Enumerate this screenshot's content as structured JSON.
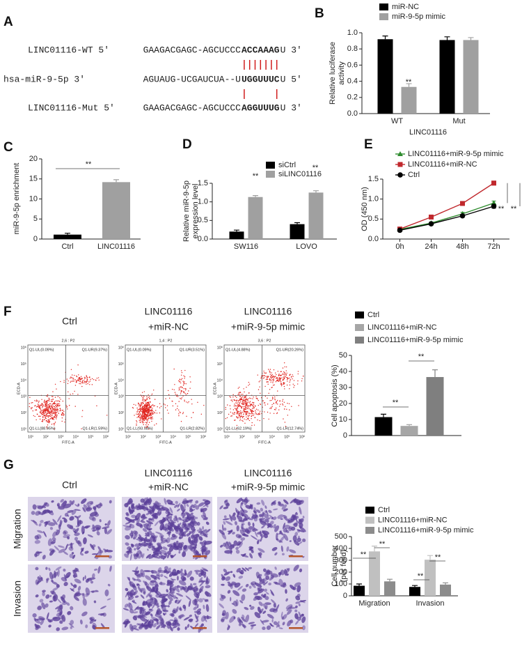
{
  "panel_labels": [
    "A",
    "B",
    "C",
    "D",
    "E",
    "F",
    "G"
  ],
  "sequences": [
    {
      "name": "LINC01116-WT 5'",
      "left": "GAAGACGAGC-AGCUCCC",
      "site": "ACCAAAG",
      "right": "U 3'"
    },
    {
      "name": "hsa-miR-9-5p 3'",
      "left": "AGUAUG-UCGAUCUA--U",
      "site": "UGGUUUC",
      "right": "U 5'"
    },
    {
      "name": "LINC01116-Mut 5'",
      "left": "GAAGACGAGC-AGCUCCC",
      "site": "AGGUUUG",
      "right": "U 3'"
    }
  ],
  "flow_cytometry": {
    "columns": [
      [
        "Ctrl"
      ],
      [
        "LINC01116",
        "+miR-NC"
      ],
      [
        "LINC01116",
        "+miR-9-5p mimic"
      ]
    ],
    "plots": [
      {
        "header": "2,6 : P2",
        "quadrants": [
          "Q1-UL(0.09%)",
          "Q1-UR(9.37%)",
          "Q1-LL(88.95%)",
          "Q1-LR(1.59%)"
        ]
      },
      {
        "header": "1,4 : P2",
        "quadrants": [
          "Q1-UL(0.09%)",
          "Q1-UR(3.51%)",
          "Q1-LL(93.58%)",
          "Q1-LR(2.82%)"
        ]
      },
      {
        "header": "3,6 : P2",
        "quadrants": [
          "Q1-UL(4.88%)",
          "Q1-UR(20.26%)",
          "Q1-LL(62.19%)",
          "Q1-LR(12.74%)"
        ]
      }
    ],
    "x_label": "FITC-A",
    "y_label": "ECD-A",
    "ticks": [
      "10¹",
      "10²",
      "10³",
      "10⁴",
      "10⁵",
      "10⁶"
    ]
  },
  "transwell": {
    "columns": [
      [
        "Ctrl"
      ],
      [
        "LINC01116",
        "+miR-NC"
      ],
      [
        "LINC01116",
        "+miR-9-5p mimic"
      ]
    ],
    "rows": [
      "Migration",
      "Invasion"
    ]
  },
  "chart_data": [
    {
      "type": "bar",
      "categories": [
        "WT",
        "Mut"
      ],
      "x_label": "LINC01116",
      "y_label": [
        "Relative luciferase",
        "activity"
      ],
      "series": [
        {
          "name": "miR-NC",
          "color": "#000000",
          "values": [
            0.92,
            0.91
          ],
          "errors": [
            0.04,
            0.04
          ]
        },
        {
          "name": "miR-9-5p mimic",
          "color": "#a0a0a0",
          "values": [
            0.33,
            0.91
          ],
          "errors": [
            0.04,
            0.03
          ]
        }
      ],
      "ylim": [
        0,
        1
      ],
      "yticks": [
        {
          "value": 0,
          "label": "0.0"
        },
        0.2,
        0.4,
        0.6,
        0.8,
        {
          "value": 1,
          "label": "1.0"
        }
      ],
      "annotations": [
        "**"
      ]
    },
    {
      "type": "bar",
      "categories": [
        "Ctrl",
        "LINC01116"
      ],
      "y_label": [
        "miR-9-5p enrichment"
      ],
      "values": [
        1.1,
        14.2
      ],
      "errors": [
        0.35,
        0.6
      ],
      "colors": [
        "#000000",
        "#a0a0a0"
      ],
      "ylim": [
        0,
        20
      ],
      "yticks": [
        0,
        5,
        10,
        15,
        20
      ],
      "annotations": [
        "**"
      ]
    },
    {
      "type": "bar",
      "categories": [
        "SW116",
        "LOVO"
      ],
      "y_label": [
        "Relative miR-9-5p",
        "expression level"
      ],
      "series": [
        {
          "name": "siCtrl",
          "color": "#000000",
          "values": [
            0.2,
            0.4
          ],
          "errors": [
            0.04,
            0.04
          ]
        },
        {
          "name": "siLINC01116",
          "color": "#a0a0a0",
          "values": [
            1.13,
            1.25
          ],
          "errors": [
            0.04,
            0.05
          ]
        }
      ],
      "ylim": [
        0,
        1.5
      ],
      "yticks": [
        {
          "value": 0,
          "label": "0.0"
        },
        0.5,
        {
          "value": 1,
          "label": "1.0"
        },
        1.5
      ],
      "annotations": [
        "**",
        "**"
      ]
    },
    {
      "type": "line",
      "categories": [
        "0h",
        "24h",
        "48h",
        "72h"
      ],
      "y_label": [
        "OD (450 nm)"
      ],
      "series": [
        {
          "name": "LINC01116+miR-9-5p mimic",
          "color": "#2e8b2e",
          "marker": "triangle",
          "values": [
            0.24,
            0.4,
            0.63,
            0.9
          ],
          "errors": [
            0.02,
            0.03,
            0.04,
            0.05
          ]
        },
        {
          "name": "LINC01116+miR-NC",
          "color": "#c0282d",
          "marker": "square",
          "values": [
            0.25,
            0.55,
            0.89,
            1.4
          ],
          "errors": [
            0.02,
            0.03,
            0.04,
            0.05
          ]
        },
        {
          "name": "Ctrl",
          "color": "#000000",
          "marker": "circle",
          "values": [
            0.22,
            0.38,
            0.58,
            0.82
          ],
          "errors": [
            0.02,
            0.03,
            0.04,
            0.05
          ]
        }
      ],
      "ylim": [
        0,
        1.5
      ],
      "yticks": [
        {
          "value": 0,
          "label": "0.0"
        },
        0.5,
        {
          "value": 1,
          "label": "1.0"
        },
        1.5
      ],
      "annotations": [
        "**",
        "**"
      ]
    },
    {
      "type": "bar",
      "categories": [
        null
      ],
      "y_label": [
        "Cell apoptosis (%)"
      ],
      "series": [
        {
          "name": "Ctrl",
          "color": "#000000",
          "values": [
            11.5
          ],
          "errors": [
            1.8
          ]
        },
        {
          "name": "LINC01116+miR-NC",
          "color": "#a6a6a6",
          "values": [
            6
          ],
          "errors": [
            0.8
          ]
        },
        {
          "name": "LINC01116+miR-9-5p mimic",
          "color": "#7f7f7f",
          "values": [
            36.5
          ],
          "errors": [
            4.5
          ]
        }
      ],
      "ylim": [
        0,
        50
      ],
      "yticks": [
        0,
        10,
        20,
        30,
        40,
        50
      ],
      "annotations": [
        "**",
        "**"
      ]
    },
    {
      "type": "bar",
      "categories": [
        "Migration",
        "Invasion"
      ],
      "y_label": [
        "Cell number",
        "(per feild)"
      ],
      "series": [
        {
          "name": "Ctrl",
          "color": "#000000",
          "values": [
            85,
            75
          ],
          "errors": [
            15,
            12
          ]
        },
        {
          "name": "LINC01116+miR-NC",
          "color": "#c0c0c0",
          "values": [
            375,
            305
          ],
          "errors": [
            45,
            35
          ]
        },
        {
          "name": "LINC01116+miR-9-5p mimic",
          "color": "#8c8c8c",
          "values": [
            122,
            95
          ],
          "errors": [
            18,
            15
          ]
        }
      ],
      "ylim": [
        0,
        500
      ],
      "yticks": [
        0,
        100,
        200,
        300,
        400,
        500
      ],
      "annotations": [
        "**",
        "**",
        "**",
        "**"
      ]
    }
  ]
}
